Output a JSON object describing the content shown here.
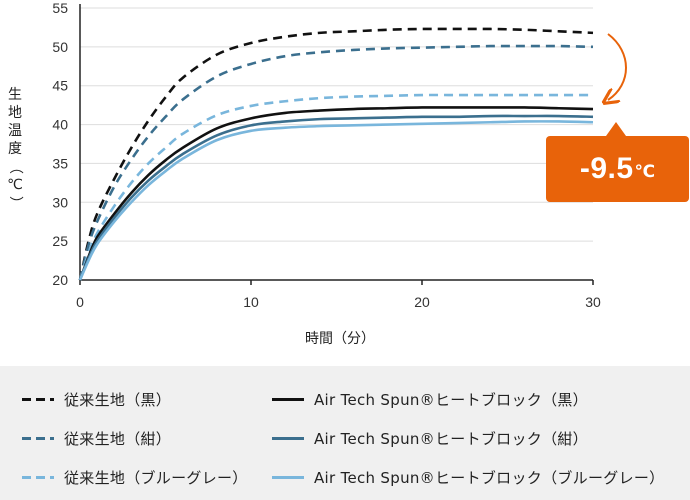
{
  "chart_data": {
    "type": "line",
    "xlabel": "時間（分）",
    "ylabel": "生地温度（℃）",
    "xlim": [
      0,
      30
    ],
    "ylim": [
      20,
      55
    ],
    "xticks": [
      "0",
      "10",
      "20",
      "30"
    ],
    "yticks": [
      "20",
      "25",
      "30",
      "35",
      "40",
      "45",
      "50",
      "55"
    ],
    "grid": "horizontal",
    "legend_position": "bottom",
    "series": [
      {
        "name": "従来生地（黒）",
        "style": "dashed",
        "color": "#111111",
        "x": [
          0,
          0.5,
          1,
          2,
          3,
          4,
          5,
          6,
          8,
          10,
          12,
          14,
          16,
          18,
          20,
          22,
          24,
          26,
          28,
          30
        ],
        "y": [
          20,
          25,
          28.5,
          33,
          37,
          40.5,
          43.5,
          46,
          49,
          50.5,
          51.3,
          51.8,
          52.0,
          52.2,
          52.3,
          52.3,
          52.3,
          52.2,
          52.0,
          51.8
        ]
      },
      {
        "name": "従来生地（紺）",
        "style": "dashed",
        "color": "#3b6f8e",
        "x": [
          0,
          0.5,
          1,
          2,
          3,
          4,
          5,
          6,
          8,
          10,
          12,
          14,
          16,
          18,
          20,
          22,
          24,
          26,
          28,
          30
        ],
        "y": [
          20,
          24.5,
          27.5,
          32,
          35.5,
          38.5,
          41,
          43.2,
          46.2,
          47.8,
          48.8,
          49.3,
          49.6,
          49.8,
          49.9,
          50.0,
          50.1,
          50.1,
          50.1,
          50.0
        ]
      },
      {
        "name": "従来生地（ブルーグレー）",
        "style": "dashed",
        "color": "#79b6dc",
        "x": [
          0,
          0.5,
          1,
          2,
          3,
          4,
          5,
          6,
          8,
          10,
          12,
          14,
          16,
          18,
          20,
          22,
          24,
          26,
          28,
          30
        ],
        "y": [
          20,
          23.5,
          26,
          29.5,
          32.5,
          35,
          37,
          38.8,
          41.2,
          42.4,
          43.0,
          43.4,
          43.6,
          43.7,
          43.8,
          43.8,
          43.8,
          43.8,
          43.8,
          43.8
        ]
      },
      {
        "name": "Air Tech Spun®ヒートブロック（黒）",
        "style": "solid",
        "color": "#111111",
        "x": [
          0,
          0.5,
          1,
          2,
          3,
          4,
          5,
          6,
          8,
          10,
          12,
          14,
          16,
          18,
          20,
          22,
          24,
          26,
          28,
          30
        ],
        "y": [
          20,
          23,
          25.5,
          28.5,
          31.2,
          33.5,
          35.4,
          37,
          39.5,
          40.8,
          41.5,
          41.8,
          42.0,
          42.1,
          42.2,
          42.2,
          42.2,
          42.2,
          42.1,
          42.0
        ]
      },
      {
        "name": "Air Tech Spun®ヒートブロック（紺）",
        "style": "solid",
        "color": "#3b6f8e",
        "x": [
          0,
          0.5,
          1,
          2,
          3,
          4,
          5,
          6,
          8,
          10,
          12,
          14,
          16,
          18,
          20,
          22,
          24,
          26,
          28,
          30
        ],
        "y": [
          20,
          22.8,
          25,
          28,
          30.6,
          32.8,
          34.6,
          36.2,
          38.6,
          39.9,
          40.4,
          40.7,
          40.8,
          40.9,
          41.0,
          41.0,
          41.1,
          41.1,
          41.1,
          41.0
        ]
      },
      {
        "name": "Air Tech Spun®ヒートブロック（ブルーグレー）",
        "style": "solid",
        "color": "#79b6dc",
        "x": [
          0,
          0.5,
          1,
          2,
          3,
          4,
          5,
          6,
          8,
          10,
          12,
          14,
          16,
          18,
          20,
          22,
          24,
          26,
          28,
          30
        ],
        "y": [
          20,
          22.5,
          24.6,
          27.5,
          30,
          32.2,
          34,
          35.6,
          38,
          39.2,
          39.6,
          39.8,
          39.9,
          40.0,
          40.1,
          40.2,
          40.3,
          40.4,
          40.4,
          40.3
        ]
      }
    ],
    "annotation": {
      "value": "-9.5",
      "unit": "℃",
      "color": "#e8630a"
    }
  }
}
